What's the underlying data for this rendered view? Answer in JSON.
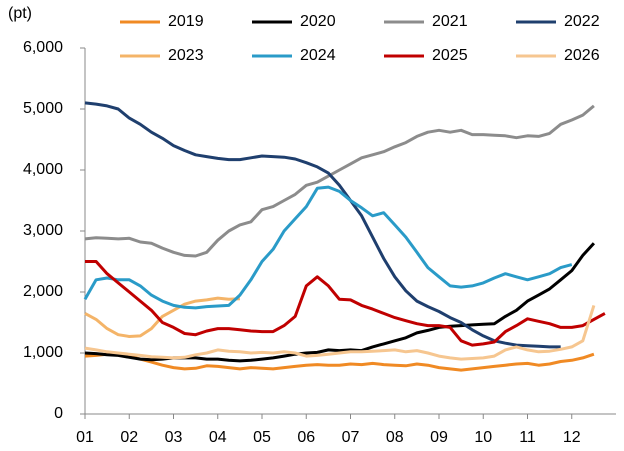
{
  "chart_data": {
    "type": "line",
    "y_label": "(pt)",
    "x": [
      1,
      1.25,
      1.5,
      1.75,
      2,
      2.25,
      2.5,
      2.75,
      3,
      3.25,
      3.5,
      3.75,
      4,
      4.25,
      4.5,
      4.75,
      5,
      5.25,
      5.5,
      5.75,
      6,
      6.25,
      6.5,
      6.75,
      7,
      7.25,
      7.5,
      7.75,
      8,
      8.25,
      8.5,
      8.75,
      9,
      9.25,
      9.5,
      9.75,
      10,
      10.25,
      10.5,
      10.75,
      11,
      11.25,
      11.5,
      11.75,
      12,
      12.25,
      12.5,
      12.75
    ],
    "xlim": [
      1,
      13
    ],
    "xticks": [
      {
        "value": 1,
        "label": "01"
      },
      {
        "value": 2,
        "label": "02"
      },
      {
        "value": 3,
        "label": "03"
      },
      {
        "value": 4,
        "label": "04"
      },
      {
        "value": 5,
        "label": "05"
      },
      {
        "value": 6,
        "label": "06"
      },
      {
        "value": 7,
        "label": "07"
      },
      {
        "value": 8,
        "label": "08"
      },
      {
        "value": 9,
        "label": "09"
      },
      {
        "value": 10,
        "label": "10"
      },
      {
        "value": 11,
        "label": "11"
      },
      {
        "value": 12,
        "label": "12"
      }
    ],
    "ylim": [
      0,
      6000
    ],
    "yticks": [
      0,
      {
        "value": 1000,
        "label": "1,000"
      },
      {
        "value": 2000,
        "label": "2,000"
      },
      {
        "value": 3000,
        "label": "3,000"
      },
      {
        "value": 4000,
        "label": "4,000"
      },
      {
        "value": 5000,
        "label": "5,000"
      },
      {
        "value": 6000,
        "label": "6,000"
      }
    ],
    "grid": false,
    "legend": "top",
    "series": [
      {
        "name": "2019",
        "color": "#f08a24",
        "values": [
          950,
          960,
          980,
          970,
          950,
          900,
          850,
          800,
          760,
          740,
          750,
          790,
          780,
          760,
          740,
          760,
          750,
          740,
          760,
          780,
          800,
          810,
          800,
          800,
          820,
          810,
          830,
          810,
          800,
          790,
          820,
          800,
          760,
          740,
          720,
          740,
          760,
          780,
          800,
          820,
          830,
          800,
          820,
          860,
          880,
          920,
          980,
          null
        ]
      },
      {
        "name": "2020",
        "color": "#000000",
        "values": [
          1000,
          990,
          970,
          960,
          930,
          900,
          890,
          900,
          920,
          920,
          920,
          900,
          900,
          880,
          870,
          880,
          900,
          920,
          950,
          980,
          1000,
          1010,
          1050,
          1040,
          1050,
          1040,
          1100,
          1150,
          1200,
          1250,
          1330,
          1370,
          1420,
          1440,
          1450,
          1460,
          1470,
          1480,
          1600,
          1700,
          1850,
          1950,
          2050,
          2200,
          2350,
          2600,
          2800,
          null
        ]
      },
      {
        "name": "2021",
        "color": "#8c8c8c",
        "values": [
          2870,
          2890,
          2880,
          2870,
          2880,
          2820,
          2800,
          2720,
          2650,
          2600,
          2590,
          2650,
          2850,
          3000,
          3100,
          3150,
          3350,
          3400,
          3500,
          3600,
          3750,
          3800,
          3900,
          4000,
          4100,
          4200,
          4250,
          4300,
          4380,
          4450,
          4550,
          4620,
          4650,
          4620,
          4650,
          4580,
          4580,
          4570,
          4560,
          4530,
          4560,
          4550,
          4600,
          4750,
          4820,
          4900,
          5050,
          null
        ]
      },
      {
        "name": "2022",
        "color": "#1f3f6e",
        "values": [
          5100,
          5080,
          5050,
          5000,
          4850,
          4750,
          4620,
          4520,
          4400,
          4320,
          4250,
          4220,
          4190,
          4170,
          4170,
          4200,
          4230,
          4220,
          4210,
          4180,
          4120,
          4050,
          3950,
          3750,
          3500,
          3250,
          2900,
          2550,
          2250,
          2020,
          1850,
          1760,
          1680,
          1580,
          1500,
          1380,
          1280,
          1200,
          1160,
          1130,
          1120,
          1110,
          1100,
          1100,
          null,
          null,
          null,
          null
        ]
      },
      {
        "name": "2023",
        "color": "#f4b468",
        "values": [
          1650,
          1550,
          1400,
          1300,
          1270,
          1280,
          1400,
          1600,
          1700,
          1800,
          1850,
          1870,
          1900,
          1880,
          1890,
          null,
          null,
          null,
          null,
          null,
          null,
          null,
          null,
          null,
          null,
          null,
          null,
          null,
          null,
          null,
          null,
          null,
          null,
          null,
          null,
          null,
          null,
          null,
          null,
          null,
          null,
          null,
          null,
          null,
          null,
          null,
          null,
          null
        ]
      },
      {
        "name": "2024",
        "color": "#2a9bc8",
        "values": [
          1880,
          2200,
          2230,
          2200,
          2200,
          2100,
          1950,
          1850,
          1780,
          1750,
          1740,
          1760,
          1770,
          1780,
          1950,
          2200,
          2500,
          2700,
          3000,
          3200,
          3400,
          3700,
          3720,
          3650,
          3500,
          3380,
          3250,
          3300,
          3100,
          2900,
          2650,
          2400,
          2250,
          2100,
          2080,
          2100,
          2150,
          2230,
          2300,
          2250,
          2200,
          2250,
          2300,
          2400,
          2450,
          null,
          null,
          null
        ]
      },
      {
        "name": "2025",
        "color": "#c00000",
        "values": [
          2500,
          2500,
          2300,
          2150,
          2000,
          1850,
          1700,
          1500,
          1420,
          1320,
          1300,
          1360,
          1400,
          1400,
          1380,
          1360,
          1350,
          1350,
          1450,
          1600,
          2100,
          2250,
          2100,
          1880,
          1870,
          1780,
          1720,
          1650,
          1580,
          1530,
          1480,
          1450,
          1450,
          1420,
          1200,
          1130,
          1150,
          1180,
          1350,
          1450,
          1560,
          1520,
          1480,
          1420,
          1420,
          1450,
          1550,
          1650
        ]
      },
      {
        "name": "2026",
        "color": "#f6c690",
        "values": [
          1080,
          1050,
          1020,
          1000,
          980,
          960,
          940,
          930,
          920,
          930,
          970,
          1000,
          1050,
          1030,
          1020,
          1000,
          1010,
          1000,
          1020,
          1000,
          950,
          960,
          980,
          1000,
          1020,
          1020,
          1030,
          1040,
          1050,
          1020,
          1040,
          1000,
          950,
          920,
          900,
          910,
          920,
          950,
          1050,
          1100,
          1050,
          1020,
          1030,
          1060,
          1100,
          1200,
          1780,
          null
        ]
      }
    ]
  }
}
